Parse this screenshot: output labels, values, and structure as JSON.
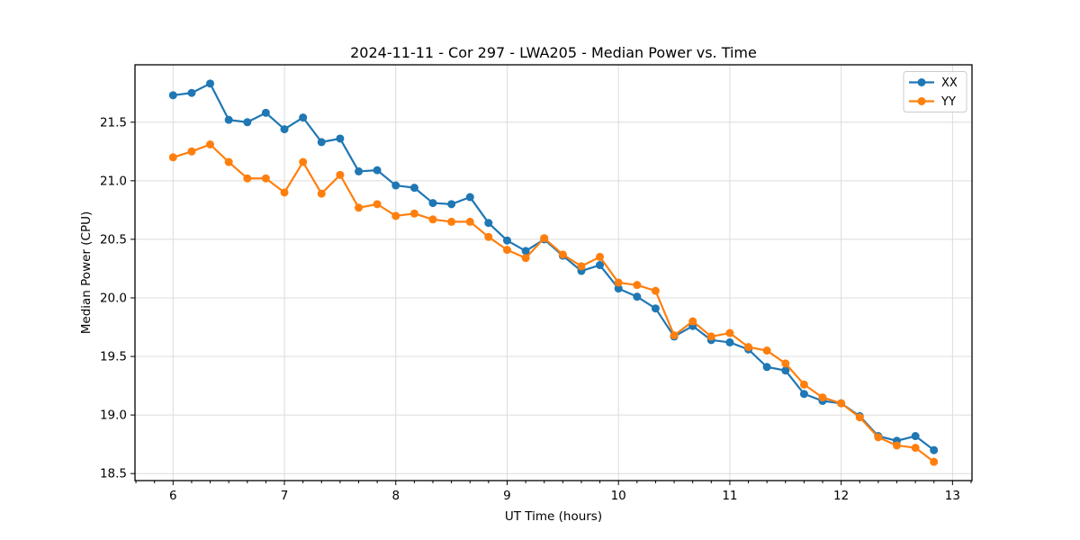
{
  "window": {
    "title": "2024-11-11 - Cor 297 - LWA205 - Median Power vs. Time"
  },
  "chart_data": {
    "type": "line",
    "title": "2024-11-11 - Cor 297 - LWA205 - Median Power vs. Time",
    "xlabel": "UT Time (hours)",
    "ylabel": "Median Power (CPU)",
    "xlim": [
      5.658,
      13.175
    ],
    "ylim": [
      18.44,
      21.99
    ],
    "x_major_ticks": [
      6,
      7,
      8,
      9,
      10,
      11,
      12,
      13
    ],
    "x_minor_step": 0.166667,
    "y_major_ticks": [
      18.5,
      19.0,
      19.5,
      20.0,
      20.5,
      21.0,
      21.5
    ],
    "grid": true,
    "grid_color": "#dcdcdc",
    "frame_color": "#000000",
    "legend_position": "upper right",
    "marker": "o",
    "x": [
      6.0,
      6.167,
      6.333,
      6.5,
      6.667,
      6.833,
      7.0,
      7.167,
      7.333,
      7.5,
      7.667,
      7.833,
      8.0,
      8.167,
      8.333,
      8.5,
      8.667,
      8.833,
      9.0,
      9.167,
      9.333,
      9.5,
      9.667,
      9.833,
      10.0,
      10.167,
      10.333,
      10.5,
      10.667,
      10.833,
      11.0,
      11.167,
      11.333,
      11.5,
      11.667,
      11.833,
      12.0,
      12.167,
      12.333,
      12.5,
      12.667,
      12.833
    ],
    "series": [
      {
        "name": "XX",
        "color": "#1f77b4",
        "values": [
          21.73,
          21.75,
          21.83,
          21.52,
          21.5,
          21.58,
          21.44,
          21.54,
          21.33,
          21.36,
          21.08,
          21.09,
          20.96,
          20.94,
          20.81,
          20.8,
          20.86,
          20.64,
          20.49,
          20.4,
          20.5,
          20.36,
          20.23,
          20.28,
          20.08,
          20.01,
          19.91,
          19.67,
          19.76,
          19.64,
          19.62,
          19.56,
          19.41,
          19.38,
          19.18,
          19.12,
          19.1,
          18.99,
          18.82,
          18.78,
          18.82,
          18.7
        ]
      },
      {
        "name": "YY",
        "color": "#ff7f0e",
        "values": [
          21.2,
          21.25,
          21.31,
          21.16,
          21.02,
          21.02,
          20.9,
          21.16,
          20.89,
          21.05,
          20.77,
          20.8,
          20.7,
          20.72,
          20.67,
          20.65,
          20.65,
          20.52,
          20.41,
          20.34,
          20.51,
          20.37,
          20.27,
          20.35,
          20.13,
          20.11,
          20.06,
          19.68,
          19.8,
          19.67,
          19.7,
          19.58,
          19.55,
          19.44,
          19.26,
          19.15,
          19.1,
          18.98,
          18.81,
          18.74,
          18.72,
          18.6
        ]
      }
    ]
  }
}
